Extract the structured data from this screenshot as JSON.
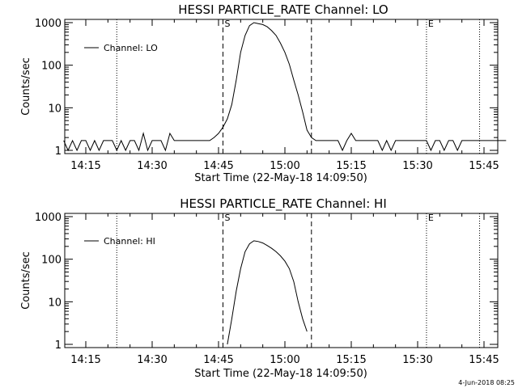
{
  "footer": {
    "date_stamp": "4-Jun-2018 08:25"
  },
  "chart_data": [
    {
      "type": "line",
      "title": "HESSI PARTICLE_RATE Channel: LO",
      "xlabel": "Start Time (22-May-18 14:09:50)",
      "ylabel": "Counts/sec",
      "y_scale": "log",
      "ylim": [
        1,
        1000
      ],
      "xlim_minutes": [
        14.1667,
        15.8333
      ],
      "x_ticks": [
        "14:15",
        "14:30",
        "14:45",
        "15:00",
        "15:15",
        "15:30",
        "15:45"
      ],
      "y_ticks": [
        "1",
        "10",
        "100",
        "1000"
      ],
      "legend": {
        "position": "top-left",
        "entries": [
          "Channel: LO"
        ]
      },
      "markers": [
        {
          "label": "",
          "x": "14:22",
          "style": "dotted"
        },
        {
          "label": "S",
          "x": "14:46",
          "style": "dashed"
        },
        {
          "label": "",
          "x": "15:06",
          "style": "dashed"
        },
        {
          "label": "E",
          "x": "15:32",
          "style": "dotted"
        },
        {
          "label": "",
          "x": "15:44",
          "style": "dotted"
        }
      ],
      "series": [
        {
          "name": "Channel: LO",
          "x": [
            "14:10",
            "14:11",
            "14:12",
            "14:13",
            "14:14",
            "14:15",
            "14:16",
            "14:17",
            "14:18",
            "14:19",
            "14:20",
            "14:21",
            "14:22",
            "14:23",
            "14:24",
            "14:25",
            "14:26",
            "14:27",
            "14:28",
            "14:29",
            "14:30",
            "14:31",
            "14:32",
            "14:33",
            "14:34",
            "14:35",
            "14:36",
            "14:37",
            "14:38",
            "14:39",
            "14:40",
            "14:41",
            "14:42",
            "14:43",
            "14:44",
            "14:45",
            "14:46",
            "14:47",
            "14:48",
            "14:49",
            "14:50",
            "14:51",
            "14:52",
            "14:53",
            "14:54",
            "14:55",
            "14:56",
            "14:57",
            "14:58",
            "14:59",
            "15:00",
            "15:01",
            "15:02",
            "15:03",
            "15:04",
            "15:05",
            "15:06",
            "15:07",
            "15:08",
            "15:09",
            "15:10",
            "15:11",
            "15:12",
            "15:13",
            "15:14",
            "15:15",
            "15:16",
            "15:17",
            "15:18",
            "15:19",
            "15:20",
            "15:21",
            "15:22",
            "15:23",
            "15:24",
            "15:25",
            "15:26",
            "15:27",
            "15:28",
            "15:29",
            "15:30",
            "15:31",
            "15:32",
            "15:33",
            "15:34",
            "15:35",
            "15:36",
            "15:37",
            "15:38",
            "15:39",
            "15:40",
            "15:41",
            "15:42",
            "15:43",
            "15:44",
            "15:45",
            "15:46",
            "15:47",
            "15:48",
            "15:49",
            "15:50"
          ],
          "y": [
            1.7,
            1,
            1.7,
            1,
            1.7,
            1.7,
            1,
            1.7,
            1,
            1.7,
            1.7,
            1.7,
            1,
            1.7,
            1,
            1.7,
            1.7,
            1,
            2.5,
            1,
            1.7,
            1.7,
            1.7,
            1,
            2.5,
            1.7,
            1.7,
            1.7,
            1.7,
            1.7,
            1.7,
            1.7,
            1.7,
            1.7,
            2,
            2.5,
            3.5,
            5.5,
            12,
            45,
            200,
            500,
            850,
            1000,
            950,
            900,
            800,
            650,
            500,
            330,
            200,
            105,
            45,
            20,
            8,
            3,
            2,
            1.7,
            1.7,
            1.7,
            1.7,
            1.7,
            1.7,
            1,
            1.7,
            2.5,
            1.7,
            1.7,
            1.7,
            1.7,
            1.7,
            1.7,
            1,
            1.7,
            1,
            1.7,
            1.7,
            1.7,
            1.7,
            1.7,
            1.7,
            1.7,
            1.7,
            1,
            1.7,
            1.7,
            1,
            1.7,
            1.7,
            1,
            1.7,
            1.7,
            1.7,
            1.7,
            1.7,
            1.7,
            1.7,
            1.7,
            1.7,
            1.7,
            1.7
          ]
        }
      ]
    },
    {
      "type": "line",
      "title": "HESSI PARTICLE_RATE Channel: HI",
      "xlabel": "Start Time (22-May-18 14:09:50)",
      "ylabel": "Counts/sec",
      "y_scale": "log",
      "ylim": [
        1,
        1000
      ],
      "xlim_minutes": [
        14.1667,
        15.8333
      ],
      "x_ticks": [
        "14:15",
        "14:30",
        "14:45",
        "15:00",
        "15:15",
        "15:30",
        "15:45"
      ],
      "y_ticks": [
        "1",
        "10",
        "100",
        "1000"
      ],
      "legend": {
        "position": "top-left",
        "entries": [
          "Channel: HI"
        ]
      },
      "markers": [
        {
          "label": "",
          "x": "14:22",
          "style": "dotted"
        },
        {
          "label": "S",
          "x": "14:46",
          "style": "dashed"
        },
        {
          "label": "",
          "x": "15:06",
          "style": "dashed"
        },
        {
          "label": "E",
          "x": "15:32",
          "style": "dotted"
        },
        {
          "label": "",
          "x": "15:44",
          "style": "dotted"
        }
      ],
      "series": [
        {
          "name": "Channel: HI",
          "x": [
            "14:47",
            "14:48",
            "14:49",
            "14:50",
            "14:51",
            "14:52",
            "14:53",
            "14:54",
            "14:55",
            "14:56",
            "14:57",
            "14:58",
            "14:59",
            "15:00",
            "15:01",
            "15:02",
            "15:03",
            "15:04",
            "15:05"
          ],
          "y": [
            1,
            4,
            18,
            60,
            150,
            230,
            270,
            260,
            240,
            210,
            180,
            150,
            120,
            90,
            60,
            30,
            10,
            4,
            2
          ]
        }
      ]
    }
  ]
}
